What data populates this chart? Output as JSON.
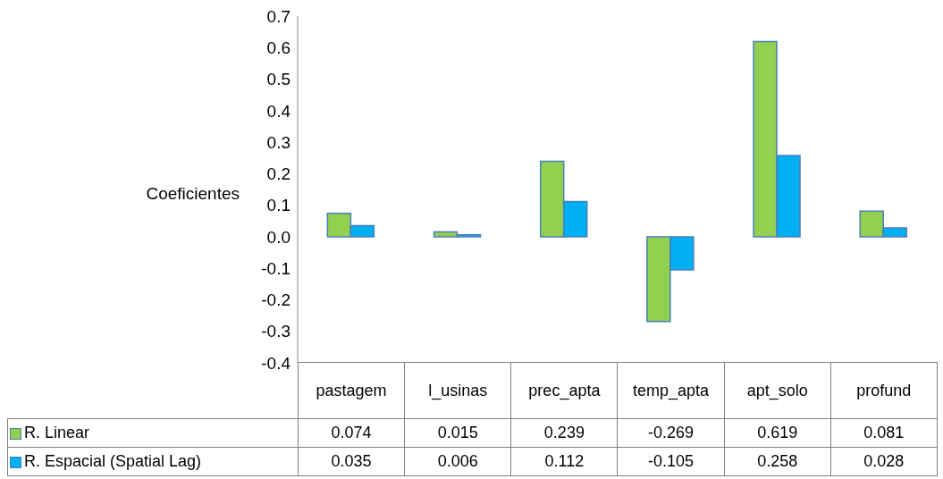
{
  "chart_data": {
    "type": "bar",
    "ylabel": "Coeficientes",
    "categories": [
      "pastagem",
      "l_usinas",
      "prec_apta",
      "temp_apta",
      "apt_solo",
      "profund"
    ],
    "series": [
      {
        "name": "R. Linear",
        "color": "#92d050",
        "values": [
          0.074,
          0.015,
          0.239,
          -0.269,
          0.619,
          0.081
        ]
      },
      {
        "name": "R. Espacial (Spatial Lag)",
        "color": "#00b0f0",
        "values": [
          0.035,
          0.006,
          0.112,
          -0.105,
          0.258,
          0.028
        ]
      }
    ],
    "ylim": [
      -0.4,
      0.7
    ],
    "yticks": [
      -0.4,
      -0.3,
      -0.2,
      -0.1,
      {
        "value": 0,
        "label": "0.0"
      },
      0.1,
      0.2,
      0.3,
      0.4,
      0.5,
      0.6,
      0.7
    ],
    "grid": false,
    "legend": "bottom left",
    "data_labels": true
  }
}
